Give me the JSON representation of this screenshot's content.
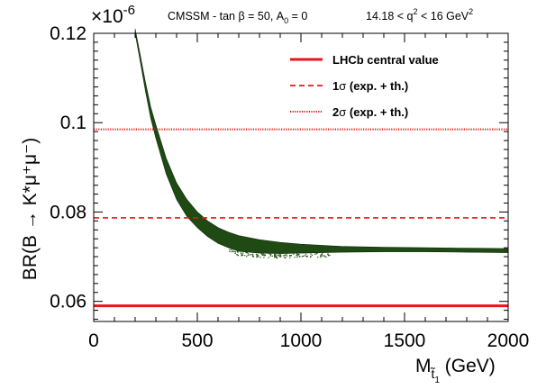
{
  "colors": {
    "band": "#1f4a14",
    "band_edge": "#0e2a08",
    "central": "#e8151b",
    "sigma": "#e8151b",
    "frame": "#000000"
  },
  "chart_data": {
    "type": "scatter",
    "title_left": "CMSSM - tan β = 50, A",
    "title_left_sub": "0",
    "title_left_end": " = 0",
    "title_right_pre": "14.18 < q",
    "title_right_sup": "2",
    "title_right_post": " < 16 GeV",
    "title_right_sup2": "2",
    "exponent_label": "×10",
    "exponent_sup": "-6",
    "xlabel_main": "M",
    "xlabel_sub": "t̃",
    "xlabel_subsub": "1",
    "xlabel_unit": " (GeV)",
    "ylabel": "BR(B → K*μ⁺μ⁻)",
    "xlim": [
      0,
      2000
    ],
    "ylim": [
      0.0555,
      0.12
    ],
    "x_ticks": [
      0,
      500,
      1000,
      1500,
      2000
    ],
    "x_tick_labels": [
      "0",
      "500",
      "1000",
      "1500",
      "2000"
    ],
    "y_ticks": [
      0.06,
      0.08,
      0.1,
      0.12
    ],
    "y_tick_labels": [
      "0.06",
      "0.08",
      "0.1",
      "0.12"
    ],
    "reference_lines": [
      {
        "name": "LHCb central value",
        "value": 0.059,
        "style": "solid"
      },
      {
        "name": "1σ (exp. + th.)",
        "value": 0.0787,
        "style": "dashed"
      },
      {
        "name": "2σ (exp. + th.)",
        "value": 0.0985,
        "style": "dotted"
      }
    ],
    "legend": {
      "placement": "top-right",
      "entries": [
        {
          "symbol": "1",
          "text_pre": "",
          "text_sym": "",
          "text_post": "LHCb central value"
        },
        {
          "symbol": "2",
          "text_pre": "1",
          "text_sym": "σ",
          "text_post": " (exp. + th.)"
        },
        {
          "symbol": "3",
          "text_pre": "2",
          "text_sym": "σ",
          "text_post": " (exp. + th.)"
        }
      ]
    },
    "band": {
      "series_name": "",
      "x": [
        200,
        225,
        250,
        275,
        300,
        350,
        400,
        450,
        500,
        550,
        600,
        650,
        700,
        800,
        900,
        1000,
        1200,
        1400,
        1600,
        1800,
        2000
      ],
      "upper": [
        0.121,
        0.115,
        0.109,
        0.1035,
        0.0995,
        0.092,
        0.0865,
        0.0828,
        0.08,
        0.078,
        0.0765,
        0.0755,
        0.0747,
        0.0738,
        0.0732,
        0.0728,
        0.0723,
        0.0721,
        0.072,
        0.0719,
        0.0718
      ],
      "lower": [
        0.12,
        0.1135,
        0.107,
        0.101,
        0.0965,
        0.0885,
        0.0828,
        0.079,
        0.0765,
        0.0745,
        0.073,
        0.072,
        0.0712,
        0.0708,
        0.0707,
        0.0708,
        0.071,
        0.0711,
        0.0711,
        0.071,
        0.0709
      ]
    }
  }
}
